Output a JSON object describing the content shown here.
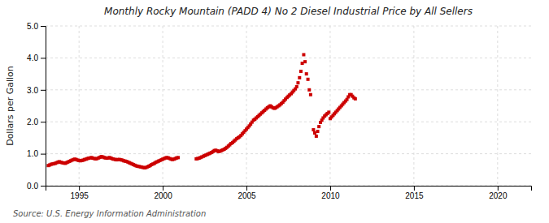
{
  "chart_data": {
    "type": "scatter",
    "title": "Monthly Rocky Mountain (PADD 4) No 2 Diesel Industrial Price by All Sellers",
    "y_label": "Dollars per Gallon",
    "annotations": [
      "Source: U.S. Energy Information Administration"
    ],
    "color": "#cc0000",
    "marker": "square",
    "grid": true,
    "xlim": [
      1993.0,
      2022.0
    ],
    "ylim": [
      0.0,
      5.0
    ],
    "xticks": [
      1995,
      2000,
      2005,
      2010,
      2015,
      2020
    ],
    "yticks": [
      {
        "value": 0.0,
        "label": "0.0"
      },
      {
        "value": 1.0,
        "label": "1.0"
      },
      {
        "value": 2.0,
        "label": "2.0"
      },
      {
        "value": 3.0,
        "label": "3.0"
      },
      {
        "value": 4.0,
        "label": "4.0"
      },
      {
        "value": 5.0,
        "label": "5.0"
      }
    ],
    "x": [
      1993.17,
      1993.25,
      1993.33,
      1993.42,
      1993.5,
      1993.58,
      1993.67,
      1993.75,
      1993.83,
      1993.92,
      1994.0,
      1994.08,
      1994.17,
      1994.25,
      1994.33,
      1994.42,
      1994.5,
      1994.58,
      1994.67,
      1994.75,
      1994.83,
      1994.92,
      1995.0,
      1995.08,
      1995.17,
      1995.25,
      1995.33,
      1995.42,
      1995.5,
      1995.58,
      1995.67,
      1995.75,
      1995.83,
      1995.92,
      1996.0,
      1996.08,
      1996.17,
      1996.25,
      1996.33,
      1996.42,
      1996.5,
      1996.58,
      1996.67,
      1996.75,
      1996.83,
      1996.92,
      1997.0,
      1997.08,
      1997.17,
      1997.25,
      1997.33,
      1997.42,
      1997.5,
      1997.58,
      1997.67,
      1997.75,
      1997.83,
      1997.92,
      1998.0,
      1998.08,
      1998.17,
      1998.25,
      1998.33,
      1998.42,
      1998.5,
      1998.58,
      1998.67,
      1998.75,
      1998.83,
      1998.92,
      1999.0,
      1999.08,
      1999.17,
      1999.25,
      1999.33,
      1999.42,
      1999.5,
      1999.58,
      1999.67,
      1999.75,
      1999.83,
      1999.92,
      2000.0,
      2000.08,
      2000.17,
      2000.25,
      2000.33,
      2000.42,
      2000.5,
      2000.58,
      2000.67,
      2000.75,
      2000.83,
      2000.92,
      2002.0,
      2002.08,
      2002.17,
      2002.25,
      2002.33,
      2002.42,
      2002.5,
      2002.58,
      2002.67,
      2002.75,
      2002.83,
      2002.92,
      2003.0,
      2003.08,
      2003.17,
      2003.25,
      2003.33,
      2003.42,
      2003.5,
      2003.58,
      2003.67,
      2003.75,
      2003.83,
      2003.92,
      2004.0,
      2004.08,
      2004.17,
      2004.25,
      2004.33,
      2004.42,
      2004.5,
      2004.58,
      2004.67,
      2004.75,
      2004.83,
      2004.92,
      2005.0,
      2005.08,
      2005.17,
      2005.25,
      2005.33,
      2005.42,
      2005.5,
      2005.58,
      2005.67,
      2005.75,
      2005.83,
      2005.92,
      2006.0,
      2006.08,
      2006.17,
      2006.25,
      2006.33,
      2006.42,
      2006.5,
      2006.58,
      2006.67,
      2006.75,
      2006.83,
      2006.92,
      2007.0,
      2007.08,
      2007.17,
      2007.25,
      2007.33,
      2007.42,
      2007.5,
      2007.58,
      2007.67,
      2007.75,
      2007.83,
      2007.92,
      2008.0,
      2008.08,
      2008.17,
      2008.25,
      2008.33,
      2008.42,
      2008.5,
      2008.58,
      2008.67,
      2008.75,
      2008.83,
      2009.0,
      2009.08,
      2009.17,
      2009.25,
      2009.33,
      2009.42,
      2009.5,
      2009.58,
      2009.67,
      2009.75,
      2009.83,
      2009.92,
      2010.0,
      2010.08,
      2010.17,
      2010.25,
      2010.33,
      2010.42,
      2010.5,
      2010.58,
      2010.67,
      2010.75,
      2010.83,
      2010.92,
      2011.0,
      2011.08,
      2011.17,
      2011.25,
      2011.33,
      2011.42,
      2011.5
    ],
    "values": [
      0.63,
      0.65,
      0.67,
      0.68,
      0.69,
      0.7,
      0.72,
      0.74,
      0.75,
      0.73,
      0.72,
      0.71,
      0.7,
      0.72,
      0.74,
      0.76,
      0.78,
      0.8,
      0.82,
      0.83,
      0.82,
      0.8,
      0.79,
      0.78,
      0.79,
      0.8,
      0.82,
      0.83,
      0.85,
      0.86,
      0.87,
      0.88,
      0.86,
      0.85,
      0.84,
      0.85,
      0.87,
      0.89,
      0.91,
      0.9,
      0.88,
      0.87,
      0.86,
      0.87,
      0.88,
      0.86,
      0.84,
      0.83,
      0.82,
      0.81,
      0.82,
      0.82,
      0.81,
      0.8,
      0.78,
      0.77,
      0.76,
      0.74,
      0.72,
      0.7,
      0.68,
      0.66,
      0.64,
      0.62,
      0.61,
      0.6,
      0.59,
      0.58,
      0.57,
      0.56,
      0.57,
      0.59,
      0.61,
      0.63,
      0.66,
      0.68,
      0.7,
      0.73,
      0.75,
      0.77,
      0.79,
      0.81,
      0.83,
      0.85,
      0.87,
      0.88,
      0.87,
      0.85,
      0.83,
      0.82,
      0.83,
      0.85,
      0.87,
      0.88,
      0.84,
      0.85,
      0.86,
      0.88,
      0.9,
      0.92,
      0.94,
      0.96,
      0.98,
      1.0,
      1.02,
      1.04,
      1.07,
      1.1,
      1.11,
      1.09,
      1.07,
      1.08,
      1.1,
      1.12,
      1.14,
      1.17,
      1.2,
      1.24,
      1.28,
      1.32,
      1.35,
      1.39,
      1.43,
      1.47,
      1.5,
      1.53,
      1.57,
      1.62,
      1.67,
      1.72,
      1.77,
      1.82,
      1.87,
      1.93,
      1.99,
      2.05,
      2.08,
      2.12,
      2.16,
      2.2,
      2.24,
      2.28,
      2.32,
      2.36,
      2.4,
      2.44,
      2.47,
      2.5,
      2.47,
      2.44,
      2.42,
      2.44,
      2.47,
      2.5,
      2.53,
      2.57,
      2.61,
      2.66,
      2.71,
      2.76,
      2.8,
      2.84,
      2.88,
      2.93,
      2.98,
      3.03,
      3.1,
      3.22,
      3.38,
      3.58,
      3.83,
      4.1,
      3.88,
      3.5,
      3.33,
      3.0,
      2.85,
      1.75,
      1.65,
      1.55,
      1.7,
      1.85,
      1.98,
      2.05,
      2.12,
      2.18,
      2.22,
      2.26,
      2.3,
      2.1,
      2.15,
      2.2,
      2.25,
      2.3,
      2.35,
      2.4,
      2.45,
      2.5,
      2.55,
      2.6,
      2.65,
      2.7,
      2.78,
      2.85,
      2.85,
      2.8,
      2.75,
      2.72
    ]
  }
}
